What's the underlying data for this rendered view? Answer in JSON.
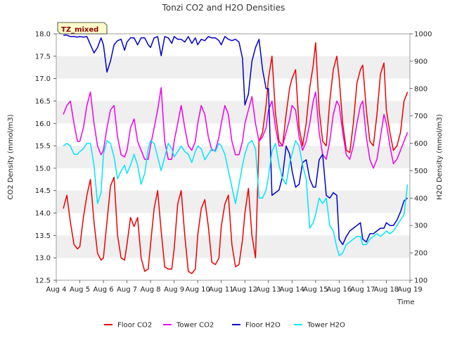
{
  "chart_data": {
    "type": "line",
    "title": "Tonzi CO2 and H2O Densities",
    "badge": "TZ_mixed",
    "xlabel": "Time",
    "ylabel_left": "CO2 Density (mmol/m3)",
    "ylabel_right": "H2O Density (mmol/m3)",
    "x_categories": [
      "Aug 4",
      "Aug 5",
      "Aug 6",
      "Aug 7",
      "Aug 8",
      "Aug 9",
      "Aug 10",
      "Aug 11",
      "Aug 12",
      "Aug 13",
      "Aug 14",
      "Aug 15",
      "Aug 16",
      "Aug 17",
      "Aug 18",
      "Aug 19"
    ],
    "xlim": [
      0,
      15
    ],
    "ylim_left": [
      12.5,
      18.0
    ],
    "yticks_left": [
      "12.5",
      "13.0",
      "13.5",
      "14.0",
      "14.5",
      "15.0",
      "15.5",
      "16.0",
      "16.5",
      "17.0",
      "17.5",
      "18.0"
    ],
    "ylim_right": [
      100,
      1000
    ],
    "yticks_right": [
      "100",
      "200",
      "300",
      "400",
      "500",
      "600",
      "700",
      "800",
      "900",
      "1000"
    ],
    "grid": "horizontal bands",
    "legend_position": "bottom",
    "series": [
      {
        "name": "Floor CO2",
        "axis": "left",
        "color": "#ee0000",
        "x": [
          0.3,
          0.45,
          0.6,
          0.75,
          0.9,
          1.0,
          1.15,
          1.3,
          1.45,
          1.6,
          1.75,
          1.9,
          2.0,
          2.15,
          2.3,
          2.45,
          2.6,
          2.75,
          2.9,
          3.0,
          3.15,
          3.3,
          3.45,
          3.6,
          3.75,
          3.9,
          4.0,
          4.15,
          4.3,
          4.45,
          4.6,
          4.75,
          4.9,
          5.0,
          5.15,
          5.3,
          5.45,
          5.6,
          5.75,
          5.9,
          6.0,
          6.15,
          6.3,
          6.45,
          6.6,
          6.75,
          6.9,
          7.0,
          7.15,
          7.3,
          7.45,
          7.6,
          7.75,
          7.9,
          8.0,
          8.15,
          8.3,
          8.45,
          8.6,
          8.75,
          8.9,
          9.0,
          9.15,
          9.3,
          9.45,
          9.6,
          9.75,
          9.9,
          10.0,
          10.15,
          10.3,
          10.45,
          10.6,
          10.75,
          10.9,
          11.0,
          11.15,
          11.3,
          11.45,
          11.6,
          11.75,
          11.9,
          12.0,
          12.15,
          12.3,
          12.45,
          12.6,
          12.75,
          12.9,
          13.0,
          13.15,
          13.3,
          13.45,
          13.6,
          13.75,
          13.9,
          14.0,
          14.15,
          14.3,
          14.45,
          14.6,
          14.75,
          14.9
        ],
        "values": [
          14.1,
          14.4,
          13.8,
          13.3,
          13.2,
          13.25,
          13.9,
          14.4,
          14.75,
          13.8,
          13.1,
          12.95,
          13.0,
          13.8,
          14.6,
          14.8,
          13.5,
          13.0,
          12.95,
          13.3,
          13.9,
          13.7,
          13.9,
          13.0,
          12.7,
          12.75,
          13.3,
          14.1,
          14.5,
          13.6,
          12.8,
          12.75,
          12.75,
          13.2,
          14.2,
          14.5,
          13.5,
          12.7,
          12.65,
          12.75,
          13.5,
          14.1,
          14.3,
          13.7,
          12.9,
          12.85,
          13.0,
          13.7,
          14.2,
          14.4,
          13.3,
          12.8,
          12.85,
          13.4,
          14.0,
          14.55,
          13.5,
          13.0,
          15.6,
          15.8,
          16.4,
          17.0,
          17.5,
          16.2,
          15.6,
          15.5,
          16.2,
          16.8,
          17.0,
          17.2,
          15.9,
          15.5,
          16.0,
          16.8,
          17.3,
          17.8,
          16.3,
          15.6,
          15.5,
          16.5,
          17.2,
          17.5,
          17.0,
          16.0,
          15.4,
          15.35,
          16.0,
          16.9,
          17.2,
          17.3,
          16.3,
          15.6,
          15.5,
          16.2,
          17.1,
          17.35,
          16.3,
          15.8,
          15.4,
          15.5,
          15.8,
          16.5,
          16.7
        ]
      },
      {
        "name": "Tower CO2",
        "axis": "left",
        "color": "#ee00ee",
        "x": [
          0.3,
          0.45,
          0.6,
          0.75,
          0.9,
          1.0,
          1.15,
          1.3,
          1.45,
          1.6,
          1.75,
          1.9,
          2.0,
          2.15,
          2.3,
          2.45,
          2.6,
          2.75,
          2.9,
          3.0,
          3.15,
          3.3,
          3.45,
          3.6,
          3.75,
          3.9,
          4.0,
          4.15,
          4.3,
          4.45,
          4.6,
          4.75,
          4.9,
          5.0,
          5.15,
          5.3,
          5.45,
          5.6,
          5.75,
          5.9,
          6.0,
          6.15,
          6.3,
          6.45,
          6.6,
          6.75,
          6.9,
          7.0,
          7.15,
          7.3,
          7.45,
          7.6,
          7.75,
          7.9,
          8.0,
          8.15,
          8.3,
          8.45,
          8.6,
          8.75,
          8.9,
          9.0,
          9.15,
          9.3,
          9.45,
          9.6,
          9.75,
          9.9,
          10.0,
          10.15,
          10.3,
          10.45,
          10.6,
          10.75,
          10.9,
          11.0,
          11.15,
          11.3,
          11.45,
          11.6,
          11.75,
          11.9,
          12.0,
          12.15,
          12.3,
          12.45,
          12.6,
          12.75,
          12.9,
          13.0,
          13.15,
          13.3,
          13.45,
          13.6,
          13.75,
          13.9,
          14.0,
          14.15,
          14.3,
          14.45,
          14.6,
          14.75,
          14.9
        ],
        "values": [
          16.2,
          16.4,
          16.5,
          16.0,
          15.6,
          15.6,
          15.9,
          16.4,
          16.7,
          16.0,
          15.5,
          15.3,
          15.4,
          15.9,
          16.3,
          16.4,
          15.7,
          15.3,
          15.25,
          15.4,
          15.9,
          16.1,
          15.6,
          15.4,
          15.2,
          15.2,
          15.5,
          15.9,
          16.3,
          16.8,
          15.6,
          15.2,
          15.2,
          15.6,
          16.0,
          16.4,
          15.9,
          15.5,
          15.4,
          15.6,
          16.0,
          16.4,
          16.2,
          15.7,
          15.4,
          15.4,
          15.7,
          16.0,
          16.4,
          16.2,
          15.6,
          15.3,
          15.3,
          15.6,
          16.0,
          16.3,
          16.6,
          16.0,
          15.6,
          15.7,
          15.9,
          16.3,
          16.5,
          15.9,
          15.5,
          15.5,
          15.8,
          16.1,
          16.4,
          16.3,
          15.7,
          15.4,
          15.6,
          16.0,
          16.5,
          16.7,
          15.8,
          15.3,
          15.2,
          15.6,
          16.2,
          16.5,
          16.4,
          15.8,
          15.3,
          15.2,
          15.5,
          16.0,
          16.4,
          16.5,
          15.7,
          15.2,
          15.0,
          15.2,
          15.7,
          16.2,
          16.0,
          15.5,
          15.1,
          15.2,
          15.4,
          15.6,
          15.8
        ]
      },
      {
        "name": "Floor H2O",
        "axis": "right",
        "color": "#0000cc",
        "x": [
          0.3,
          0.45,
          0.6,
          0.75,
          0.9,
          1.0,
          1.15,
          1.3,
          1.45,
          1.6,
          1.75,
          1.9,
          2.0,
          2.15,
          2.3,
          2.45,
          2.6,
          2.75,
          2.9,
          3.0,
          3.15,
          3.3,
          3.45,
          3.6,
          3.75,
          3.9,
          4.0,
          4.15,
          4.3,
          4.45,
          4.6,
          4.75,
          4.9,
          5.0,
          5.15,
          5.3,
          5.45,
          5.6,
          5.75,
          5.9,
          6.0,
          6.15,
          6.3,
          6.45,
          6.6,
          6.75,
          6.9,
          7.0,
          7.15,
          7.3,
          7.45,
          7.6,
          7.75,
          7.9,
          8.0,
          8.15,
          8.3,
          8.45,
          8.6,
          8.75,
          8.9,
          9.0,
          9.15,
          9.3,
          9.45,
          9.6,
          9.75,
          9.9,
          10.0,
          10.15,
          10.3,
          10.45,
          10.6,
          10.75,
          10.9,
          11.0,
          11.15,
          11.3,
          11.45,
          11.6,
          11.75,
          11.9,
          12.0,
          12.15,
          12.3,
          12.45,
          12.6,
          12.75,
          12.9,
          13.0,
          13.15,
          13.3,
          13.45,
          13.6,
          13.75,
          13.9,
          14.0,
          14.15,
          14.3,
          14.45,
          14.6,
          14.75,
          14.9
        ],
        "values": [
          995,
          995,
          990,
          990,
          988,
          990,
          988,
          990,
          960,
          930,
          950,
          985,
          960,
          860,
          900,
          960,
          975,
          980,
          940,
          970,
          985,
          985,
          960,
          985,
          985,
          960,
          950,
          985,
          990,
          920,
          990,
          985,
          965,
          990,
          980,
          980,
          970,
          990,
          965,
          985,
          960,
          980,
          975,
          990,
          985,
          985,
          975,
          960,
          990,
          980,
          975,
          980,
          970,
          910,
          740,
          780,
          900,
          950,
          980,
          870,
          800,
          800,
          410,
          420,
          430,
          480,
          590,
          560,
          500,
          440,
          450,
          530,
          540,
          470,
          440,
          440,
          540,
          560,
          410,
          400,
          420,
          410,
          250,
          230,
          260,
          280,
          290,
          300,
          310,
          250,
          240,
          270,
          270,
          280,
          290,
          290,
          310,
          300,
          300,
          320,
          350,
          390,
          400
        ]
      },
      {
        "name": "Tower H2O",
        "axis": "right",
        "color": "#00e5ff",
        "x": [
          0.3,
          0.45,
          0.6,
          0.75,
          0.9,
          1.0,
          1.15,
          1.3,
          1.45,
          1.6,
          1.75,
          1.9,
          2.0,
          2.15,
          2.3,
          2.45,
          2.6,
          2.75,
          2.9,
          3.0,
          3.15,
          3.3,
          3.45,
          3.6,
          3.75,
          3.9,
          4.0,
          4.15,
          4.3,
          4.45,
          4.6,
          4.75,
          4.9,
          5.0,
          5.15,
          5.3,
          5.45,
          5.6,
          5.75,
          5.9,
          6.0,
          6.15,
          6.3,
          6.45,
          6.6,
          6.75,
          6.9,
          7.0,
          7.15,
          7.3,
          7.45,
          7.6,
          7.75,
          7.9,
          8.0,
          8.15,
          8.3,
          8.45,
          8.6,
          8.75,
          8.9,
          9.0,
          9.15,
          9.3,
          9.45,
          9.6,
          9.75,
          9.9,
          10.0,
          10.15,
          10.3,
          10.45,
          10.6,
          10.75,
          10.9,
          11.0,
          11.15,
          11.3,
          11.45,
          11.6,
          11.75,
          11.9,
          12.0,
          12.15,
          12.3,
          12.45,
          12.6,
          12.75,
          12.9,
          13.0,
          13.15,
          13.3,
          13.45,
          13.6,
          13.75,
          13.9,
          14.0,
          14.15,
          14.3,
          14.45,
          14.6,
          14.75,
          14.9
        ],
        "values": [
          590,
          600,
          590,
          560,
          560,
          570,
          580,
          600,
          600,
          520,
          380,
          420,
          560,
          610,
          600,
          550,
          470,
          500,
          520,
          490,
          520,
          560,
          520,
          450,
          490,
          580,
          610,
          600,
          550,
          500,
          550,
          600,
          580,
          550,
          570,
          590,
          570,
          560,
          530,
          570,
          590,
          580,
          540,
          560,
          580,
          570,
          600,
          590,
          560,
          500,
          440,
          380,
          450,
          520,
          560,
          600,
          610,
          580,
          400,
          400,
          430,
          480,
          570,
          600,
          520,
          470,
          450,
          530,
          560,
          610,
          590,
          520,
          470,
          290,
          310,
          340,
          400,
          380,
          400,
          300,
          280,
          220,
          190,
          200,
          230,
          240,
          250,
          260,
          260,
          230,
          230,
          250,
          260,
          270,
          260,
          270,
          280,
          270,
          280,
          300,
          320,
          340,
          450
        ]
      }
    ]
  }
}
